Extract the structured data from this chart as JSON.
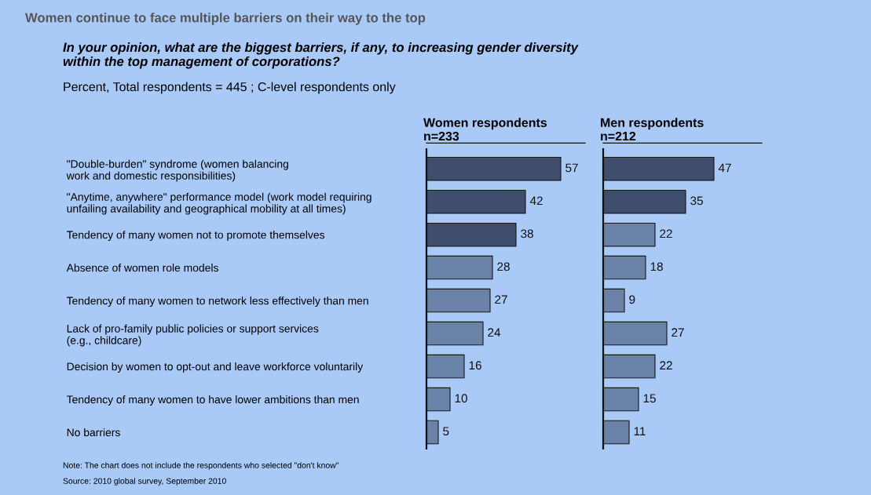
{
  "chart_data": [
    {
      "type": "bar",
      "orientation": "horizontal",
      "data_labels": true,
      "title": "Women continue to face multiple barriers on their way to the top",
      "subtitle": "In your opinion, what are the biggest barriers, if any, to increasing gender diversity\nwithin the top management of corporations?",
      "annotations": [
        "Percent, Total respondents = 445 ; C-level respondents only",
        "Note: The chart does not include the respondents who selected \"don't know\"",
        "Source: 2010 global survey, September 2010"
      ],
      "xlabel": "Women respondents\nn=233",
      "categories": [
        "\"Double-burden\" syndrome (women balancing\nwork and domestic responsibilities)",
        "\"Anytime, anywhere\" performance model (work model requiring\nunfailing availability and geographical mobility at all times)",
        "Tendency of many women not to promote themselves",
        "Absence of women role models",
        "Tendency of many women to network less effectively than men",
        "Lack of pro-family public policies or support services\n(e.g., childcare)",
        "Decision by women to opt-out and leave workforce voluntarily",
        "Tendency of many women to have lower ambitions than men",
        "No barriers"
      ],
      "values": [
        57,
        42,
        38,
        28,
        27,
        24,
        16,
        10,
        5
      ],
      "colors": [
        "#3e4e6c",
        "#3e4e6c",
        "#3e4e6c",
        "#6b82a8",
        "#6b82a8",
        "#6b82a8",
        "#6b82a8",
        "#6b82a8",
        "#6b82a8"
      ]
    },
    {
      "type": "bar",
      "orientation": "horizontal",
      "data_labels": true,
      "xlabel": "Men respondents\nn=212",
      "categories": [
        null,
        null,
        null,
        null,
        null,
        null,
        null,
        null,
        null
      ],
      "values": [
        47,
        35,
        22,
        18,
        9,
        27,
        22,
        15,
        11
      ],
      "colors": [
        "#3e4e6c",
        "#3e4e6c",
        "#6b82a8",
        "#6b82a8",
        "#6b82a8",
        "#6b82a8",
        "#6b82a8",
        "#6b82a8",
        "#6b82a8"
      ]
    }
  ]
}
